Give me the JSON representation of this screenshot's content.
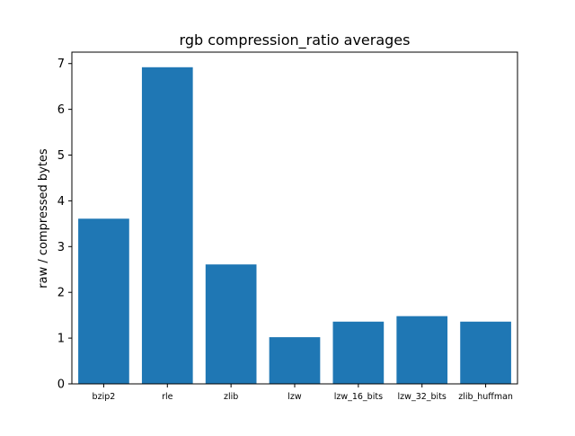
{
  "chart_data": {
    "type": "bar",
    "title": "rgb compression_ratio averages",
    "xlabel": "",
    "ylabel": "raw / compressed bytes",
    "categories": [
      "bzip2",
      "rle",
      "zlib",
      "lzw",
      "lzw_16_bits",
      "lzw_32_bits",
      "zlib_huffman"
    ],
    "values": [
      3.61,
      6.92,
      2.61,
      1.02,
      1.36,
      1.48,
      1.36
    ],
    "ylim": [
      0,
      7.25
    ],
    "yticks": [
      "0",
      "1",
      "2",
      "3",
      "4",
      "5",
      "6",
      "7"
    ],
    "grid": false,
    "legend": "none",
    "bar_color": "#1f77b4"
  }
}
